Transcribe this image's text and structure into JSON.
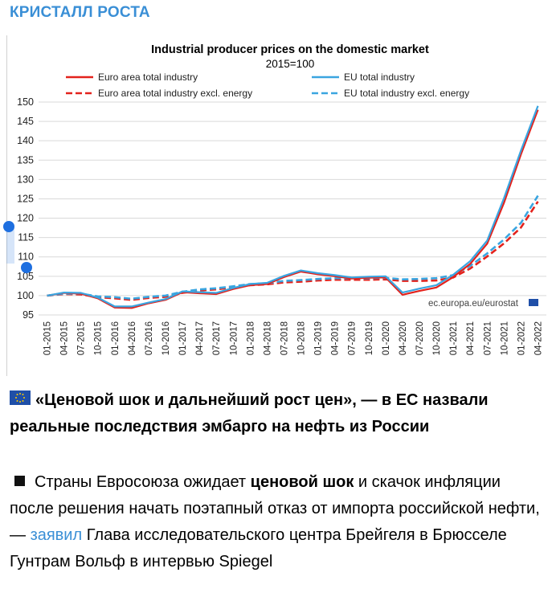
{
  "channel": {
    "name": "КРИСТАЛЛ РОСТА"
  },
  "colors": {
    "accent": "#3a8fd6",
    "euro_area": "#e3221c",
    "eu": "#3aa5e0"
  },
  "chart_data": {
    "type": "line",
    "title": "Industrial producer prices on the domestic market",
    "subtitle": "2015=100",
    "ylim": [
      95,
      150
    ],
    "yticks": [
      95,
      100,
      105,
      110,
      115,
      120,
      125,
      130,
      135,
      140,
      145,
      150
    ],
    "grid": true,
    "legend": "top",
    "source": "ec.europa.eu/eurostat",
    "x": [
      "01-2015",
      "04-2015",
      "07-2015",
      "10-2015",
      "01-2016",
      "04-2016",
      "07-2016",
      "10-2016",
      "01-2017",
      "04-2017",
      "07-2017",
      "10-2017",
      "01-2018",
      "04-2018",
      "07-2018",
      "10-2018",
      "01-2019",
      "04-2019",
      "07-2019",
      "10-2019",
      "01-2020",
      "04-2020",
      "07-2020",
      "10-2020",
      "01-2021",
      "04-2021",
      "07-2021",
      "10-2021",
      "01-2022",
      "04-2022"
    ],
    "series": [
      {
        "name": "Euro area total industry",
        "style": "solid",
        "color": "#e3221c",
        "values": [
          100.0,
          100.7,
          100.5,
          99.3,
          96.9,
          96.8,
          98.0,
          98.9,
          100.9,
          100.6,
          100.4,
          101.7,
          102.7,
          103.0,
          104.8,
          106.2,
          105.5,
          105.0,
          104.4,
          104.6,
          104.7,
          100.2,
          101.2,
          102.1,
          104.8,
          108.2,
          113.4,
          124.0,
          136.5,
          148.0
        ]
      },
      {
        "name": "EU total industry",
        "style": "solid",
        "color": "#3aa5e0",
        "values": [
          100.0,
          100.8,
          100.7,
          99.5,
          97.2,
          97.2,
          98.2,
          99.1,
          101.1,
          100.9,
          100.7,
          102.0,
          103.0,
          103.3,
          105.1,
          106.5,
          105.8,
          105.3,
          104.7,
          104.9,
          105.0,
          100.8,
          101.8,
          102.7,
          105.4,
          108.9,
          114.2,
          125.2,
          137.5,
          149.0
        ]
      },
      {
        "name": "Euro area total industry excl. energy",
        "style": "dashed",
        "color": "#e3221c",
        "values": [
          100.0,
          100.4,
          100.3,
          99.6,
          99.3,
          98.9,
          99.4,
          99.7,
          100.7,
          101.3,
          101.6,
          102.1,
          102.7,
          102.9,
          103.4,
          103.6,
          103.9,
          104.1,
          104.1,
          104.1,
          104.2,
          103.8,
          103.8,
          103.9,
          104.7,
          107.0,
          110.1,
          113.5,
          117.6,
          124.3
        ]
      },
      {
        "name": "EU total industry excl. energy",
        "style": "dashed",
        "color": "#3aa5e0",
        "values": [
          100.0,
          100.5,
          100.5,
          99.8,
          99.6,
          99.2,
          99.7,
          100.0,
          101.0,
          101.6,
          101.9,
          102.4,
          103.0,
          103.2,
          103.8,
          104.0,
          104.3,
          104.5,
          104.5,
          104.5,
          104.6,
          104.2,
          104.3,
          104.5,
          105.3,
          107.7,
          110.9,
          114.5,
          118.8,
          125.8
        ]
      }
    ]
  },
  "post": {
    "flag_icon": "eu-flag-icon",
    "title": "«Ценовой шок и дальнейший рост цен», — в ЕС назвали реальные последствия эмбарго на нефть из России",
    "body_bullet_icon": "black-square-icon",
    "body_part1": "Страны Евросоюза ожидает ",
    "body_bold": "ценовой шок",
    "body_part2": " и скачок инфляции после решения начать поэтапный отказ от импорта российской нефти, — ",
    "body_link": "заявил",
    "body_part3": " Глава исследовательского центра Брейгеля в Брюсселе Гунтрам Вольф в интервью Spiegel"
  }
}
